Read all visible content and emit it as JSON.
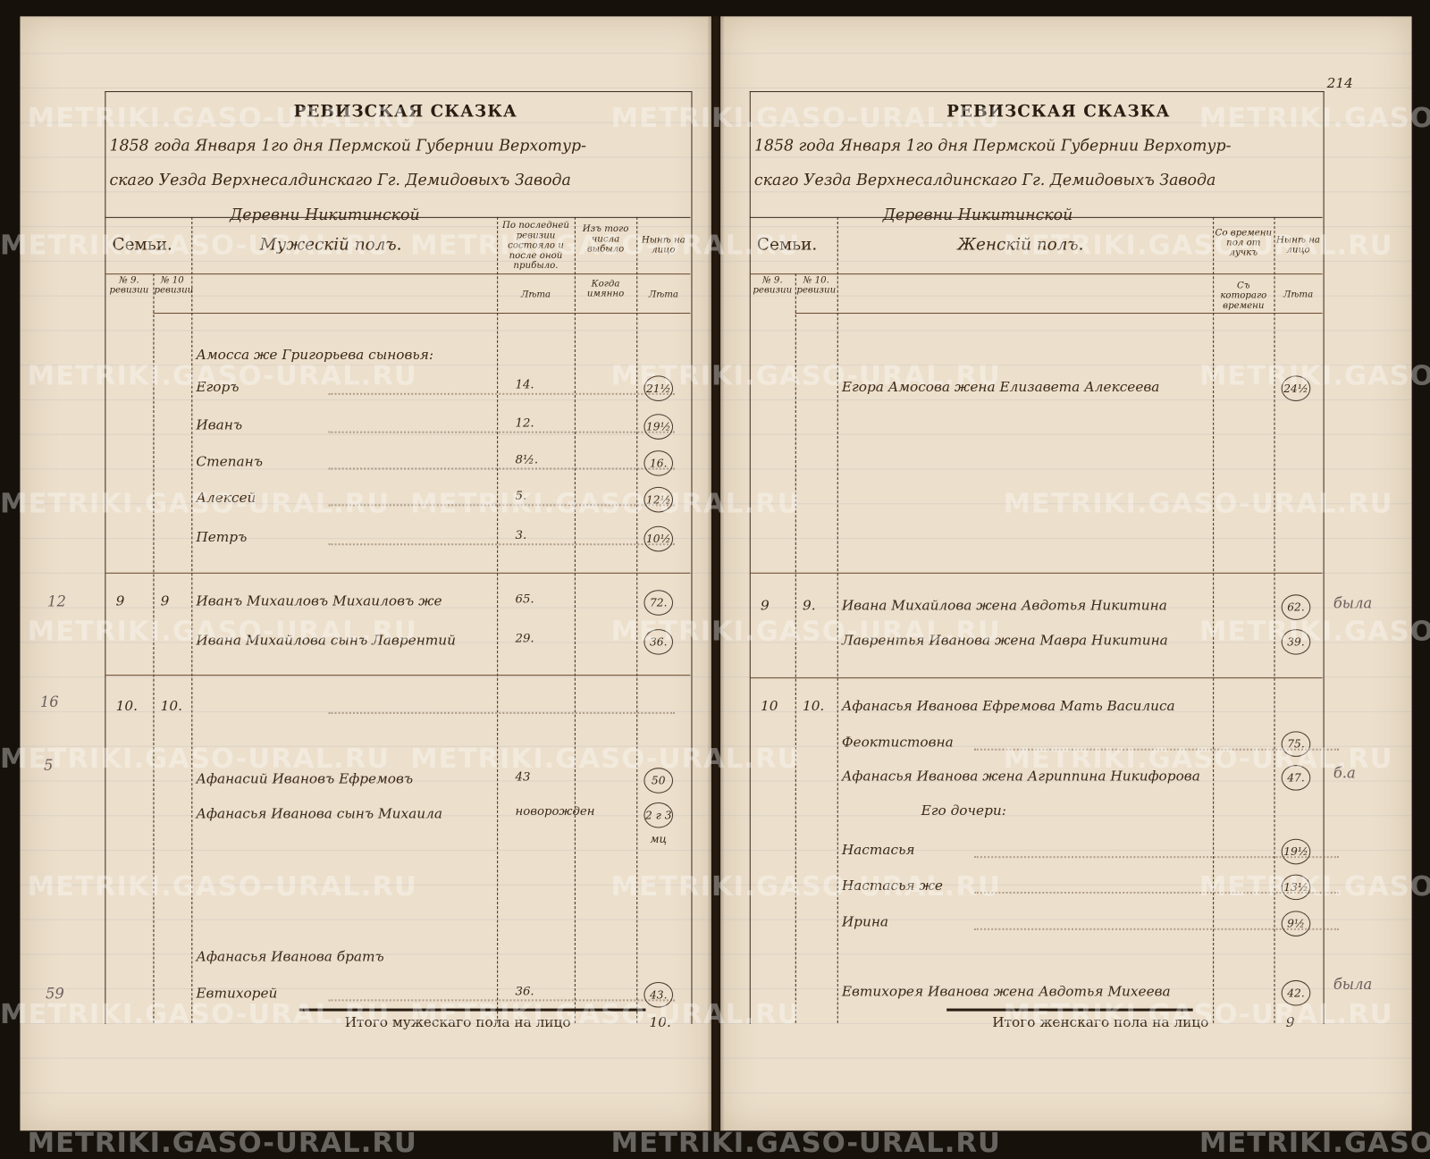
{
  "watermark": "METRIKI.GASO-URAL.RU",
  "colors": {
    "paper": "#ecdfcb",
    "ink": "#3a2818",
    "background": "#17110c"
  },
  "left_page": {
    "title": "РЕВИЗСКАЯ СКАЗКА",
    "heading_lines": [
      "1858 года Января 1го дня Пермской Губернии Верхотур-",
      "скаго Уезда Верхнесалдинскаго Гг. Демидовыхъ Завода",
      "Деревни Никитинской"
    ],
    "columns": {
      "families": "Семьи.",
      "section": "Мужескій полъ.",
      "prev_revision": "По последней ревизии состояло и после оной прибыло.",
      "departed": "Изъ того числа выбыло",
      "present": "Нынѣ на лицо",
      "rev9": "№ 9. ревизии",
      "rev10": "№ 10 ревизии",
      "years1": "Лѣта",
      "when": "Когда имянно",
      "years2": "Лѣта"
    },
    "entries": [
      {
        "rev9": "",
        "rev10": "",
        "name": "Амосса же Григорьева сыновья:",
        "prev": "",
        "present": ""
      },
      {
        "rev9": "",
        "rev10": "",
        "name": "Егоръ",
        "prev": "14.",
        "present": "21½"
      },
      {
        "rev9": "",
        "rev10": "",
        "name": "Иванъ",
        "prev": "12.",
        "present": "19½"
      },
      {
        "rev9": "",
        "rev10": "",
        "name": "Степанъ",
        "prev": "8½.",
        "present": "16."
      },
      {
        "rev9": "",
        "rev10": "",
        "name": "Алексей",
        "prev": "5.",
        "present": "12½"
      },
      {
        "rev9": "",
        "rev10": "",
        "name": "Петръ",
        "prev": "3.",
        "present": "10½"
      },
      {
        "rev9": "9",
        "rev10": "9",
        "name": "Иванъ Михаиловъ Михаиловъ же",
        "prev": "65.",
        "present": "72."
      },
      {
        "rev9": "",
        "rev10": "",
        "name": "Ивана Михайлова сынъ Лаврентий",
        "prev": "29.",
        "present": "36."
      },
      {
        "rev9": "10.",
        "rev10": "10.",
        "name": "",
        "prev": "",
        "present": ""
      },
      {
        "rev9": "",
        "rev10": "",
        "name": "Афанасий Ивановъ Ефремовъ",
        "prev": "43",
        "present": "50"
      },
      {
        "rev9": "",
        "rev10": "",
        "name": "Афанасья Иванова сынъ Михаила",
        "prev": "новорожден",
        "present": "2 г 3 мц"
      },
      {
        "rev9": "",
        "rev10": "",
        "name": "Афанасья Иванова братъ",
        "prev": "",
        "present": ""
      },
      {
        "rev9": "",
        "rev10": "",
        "name": "Евтихорей",
        "prev": "36.",
        "present": "43."
      }
    ],
    "margin_notes": [
      "12",
      "16",
      "5",
      "59"
    ],
    "total_label": "Итого мужескаго пола на лицо",
    "total_value": "10."
  },
  "right_page": {
    "page_number": "214",
    "title": "РЕВИЗСКАЯ СКАЗКА",
    "heading_lines": [
      "1858 года Января 1го дня Пермской Губернии Верхотур-",
      "скаго Уезда Верхнесалдинскаго Гг. Демидовыхъ Завода",
      "Деревни Никитинской"
    ],
    "columns": {
      "families": "Семьи.",
      "section": "Женскій полъ.",
      "absence": "Со времени пол от лучкъ",
      "present": "Нынѣ на лицо",
      "rev9": "№ 9. ревизии",
      "rev10": "№ 10. ревизии",
      "since": "Съ котораго времени",
      "years": "Лѣта"
    },
    "entries": [
      {
        "rev9": "",
        "rev10": "",
        "name": "Егора Амосова жена Елизавета Алексеева",
        "present": "24½"
      },
      {
        "rev9": "9",
        "rev10": "9.",
        "name": "Ивана Михайлова жена Авдотья Никитина",
        "present": "62."
      },
      {
        "rev9": "",
        "rev10": "",
        "name": "Лаврентья Иванова жена Мавра Никитина",
        "present": "39."
      },
      {
        "rev9": "10",
        "rev10": "10.",
        "name": "Афанасья Иванова Ефремова Мать Василиса",
        "present": ""
      },
      {
        "rev9": "",
        "rev10": "",
        "name": "Феоктистовна",
        "present": "75."
      },
      {
        "rev9": "",
        "rev10": "",
        "name": "Афанасья Иванова жена Агриппина Никифорова",
        "present": "47."
      },
      {
        "rev9": "",
        "rev10": "",
        "name": "Его дочери:",
        "present": ""
      },
      {
        "rev9": "",
        "rev10": "",
        "name": "Настасья",
        "present": "19½"
      },
      {
        "rev9": "",
        "rev10": "",
        "name": "Настасья же",
        "present": "13½"
      },
      {
        "rev9": "",
        "rev10": "",
        "name": "Ирина",
        "present": "9½"
      },
      {
        "rev9": "",
        "rev10": "",
        "name": "Евтихорея Иванова жена Авдотья Михеева",
        "present": "42."
      }
    ],
    "margin_notes": [
      "была",
      "б.а",
      "была"
    ],
    "total_label": "Итого женскаго пола на лицо",
    "total_value": "9"
  }
}
